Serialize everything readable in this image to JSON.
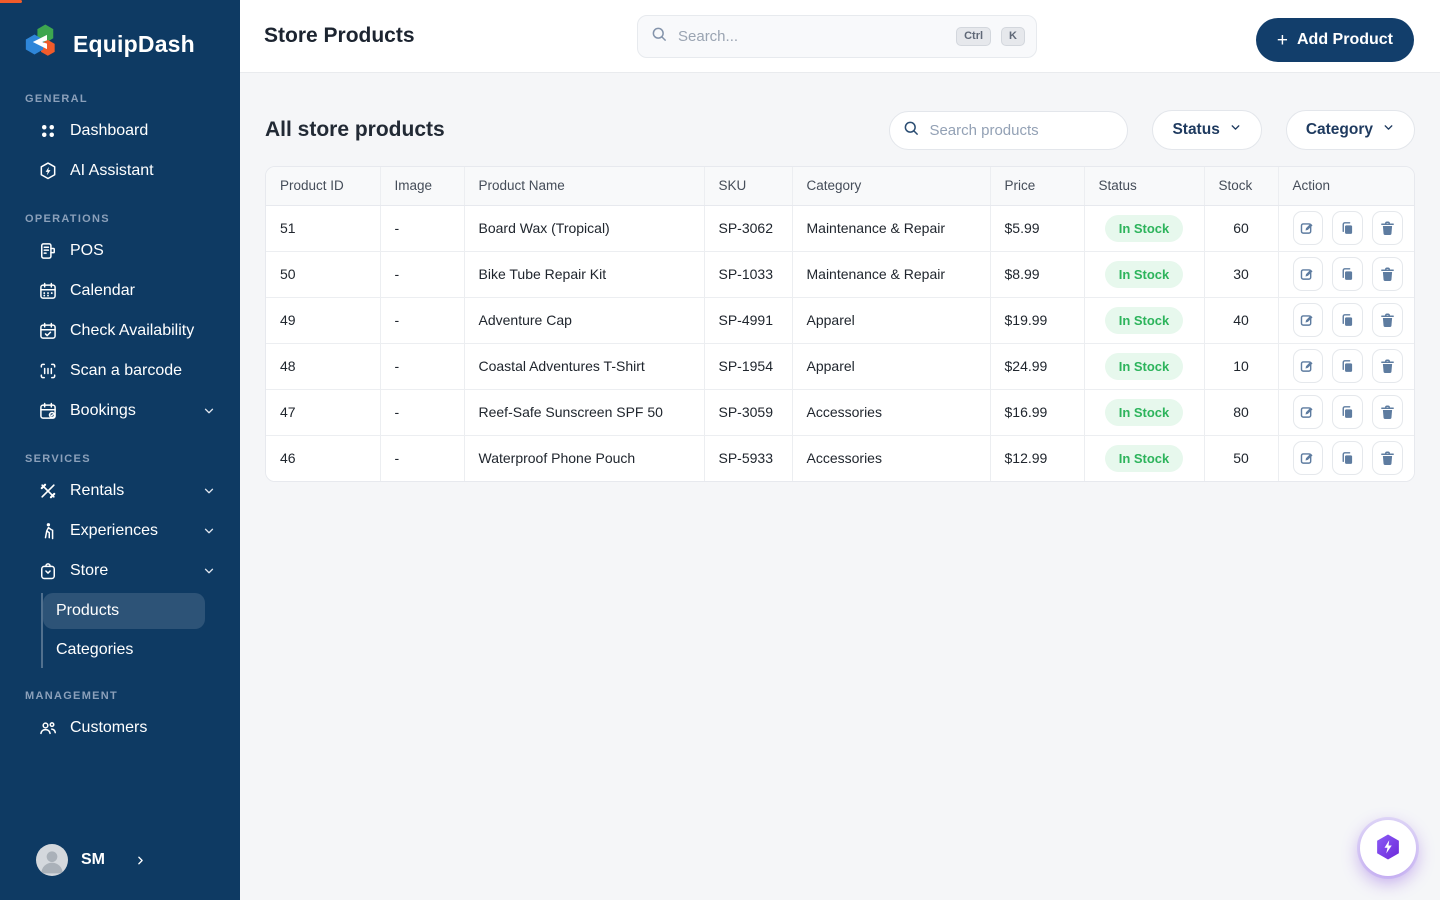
{
  "colors": {
    "sidebar_navy": "#0e3a63",
    "button_navy": "#123e6b",
    "badge_green_text": "#2db45c",
    "badge_green_bg": "#e7f8ed",
    "action_icon_slate": "#5e7ca0",
    "assistant_purple": "#7c3aed",
    "logo_green": "#3da64f",
    "logo_blue": "#2e86d9",
    "logo_orange": "#f15b2a"
  },
  "sidebar": {
    "brand": "EquipDash",
    "sections": [
      {
        "label": "GENERAL",
        "items": [
          {
            "label": "Dashboard"
          },
          {
            "label": "AI Assistant"
          }
        ]
      },
      {
        "label": "OPERATIONS",
        "items": [
          {
            "label": "POS"
          },
          {
            "label": "Calendar"
          },
          {
            "label": "Check Availability"
          },
          {
            "label": "Scan a barcode"
          },
          {
            "label": "Bookings"
          }
        ]
      },
      {
        "label": "SERVICES",
        "items": [
          {
            "label": "Rentals"
          },
          {
            "label": "Experiences"
          },
          {
            "label": "Store",
            "children": [
              {
                "label": "Products",
                "active": true
              },
              {
                "label": "Categories"
              }
            ]
          }
        ]
      },
      {
        "label": "MANAGEMENT",
        "items": [
          {
            "label": "Customers"
          }
        ]
      }
    ],
    "user": {
      "initials": "SM"
    }
  },
  "topbar": {
    "title": "Store Products",
    "search": {
      "placeholder": "Search...",
      "keys": [
        "Ctrl",
        "K"
      ]
    },
    "add_button_label": "Add Product"
  },
  "toolbar": {
    "heading": "All store products",
    "search_placeholder": "Search products",
    "status_filter_label": "Status",
    "category_filter_label": "Category"
  },
  "table": {
    "columns": [
      "Product ID",
      "Image",
      "Product Name",
      "SKU",
      "Category",
      "Price",
      "Status",
      "Stock",
      "Action"
    ],
    "rows": [
      {
        "id": "51",
        "image": "-",
        "name": "Board Wax (Tropical)",
        "sku": "SP-3062",
        "category": "Maintenance & Repair",
        "price": "$5.99",
        "status": "In Stock",
        "stock": "60"
      },
      {
        "id": "50",
        "image": "-",
        "name": "Bike Tube Repair Kit",
        "sku": "SP-1033",
        "category": "Maintenance & Repair",
        "price": "$8.99",
        "status": "In Stock",
        "stock": "30"
      },
      {
        "id": "49",
        "image": "-",
        "name": "Adventure Cap",
        "sku": "SP-4991",
        "category": "Apparel",
        "price": "$19.99",
        "status": "In Stock",
        "stock": "40"
      },
      {
        "id": "48",
        "image": "-",
        "name": "Coastal Adventures T-Shirt",
        "sku": "SP-1954",
        "category": "Apparel",
        "price": "$24.99",
        "status": "In Stock",
        "stock": "10"
      },
      {
        "id": "47",
        "image": "-",
        "name": "Reef-Safe Sunscreen SPF 50",
        "sku": "SP-3059",
        "category": "Accessories",
        "price": "$16.99",
        "status": "In Stock",
        "stock": "80"
      },
      {
        "id": "46",
        "image": "-",
        "name": "Waterproof Phone Pouch",
        "sku": "SP-5933",
        "category": "Accessories",
        "price": "$12.99",
        "status": "In Stock",
        "stock": "50"
      }
    ]
  }
}
